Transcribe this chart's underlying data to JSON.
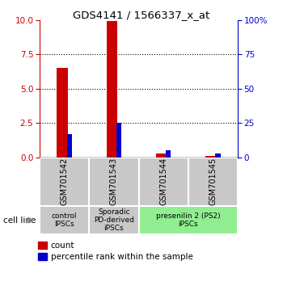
{
  "title": "GDS4141 / 1566337_x_at",
  "samples": [
    "GSM701542",
    "GSM701543",
    "GSM701544",
    "GSM701545"
  ],
  "count_values": [
    6.5,
    9.9,
    0.3,
    0.1
  ],
  "percentile_values": [
    17,
    25,
    5,
    3
  ],
  "ylim_left": [
    0,
    10
  ],
  "ylim_right": [
    0,
    100
  ],
  "yticks_left": [
    0,
    2.5,
    5.0,
    7.5,
    10
  ],
  "yticks_right": [
    0,
    25,
    50,
    75,
    100
  ],
  "red_color": "#cc0000",
  "blue_color": "#0000cc",
  "group_configs": [
    {
      "start": 0,
      "end": 1,
      "label": "control\nIPSCs",
      "color": "#c8c8c8"
    },
    {
      "start": 1,
      "end": 2,
      "label": "Sporadic\nPD-derived\niPSCs",
      "color": "#c8c8c8"
    },
    {
      "start": 2,
      "end": 4,
      "label": "presenilin 2 (PS2)\niPSCs",
      "color": "#90ee90"
    }
  ],
  "sample_box_color": "#c8c8c8",
  "cell_line_label": "cell line",
  "legend_count": "count",
  "legend_percentile": "percentile rank within the sample",
  "bg_color": "#ffffff"
}
